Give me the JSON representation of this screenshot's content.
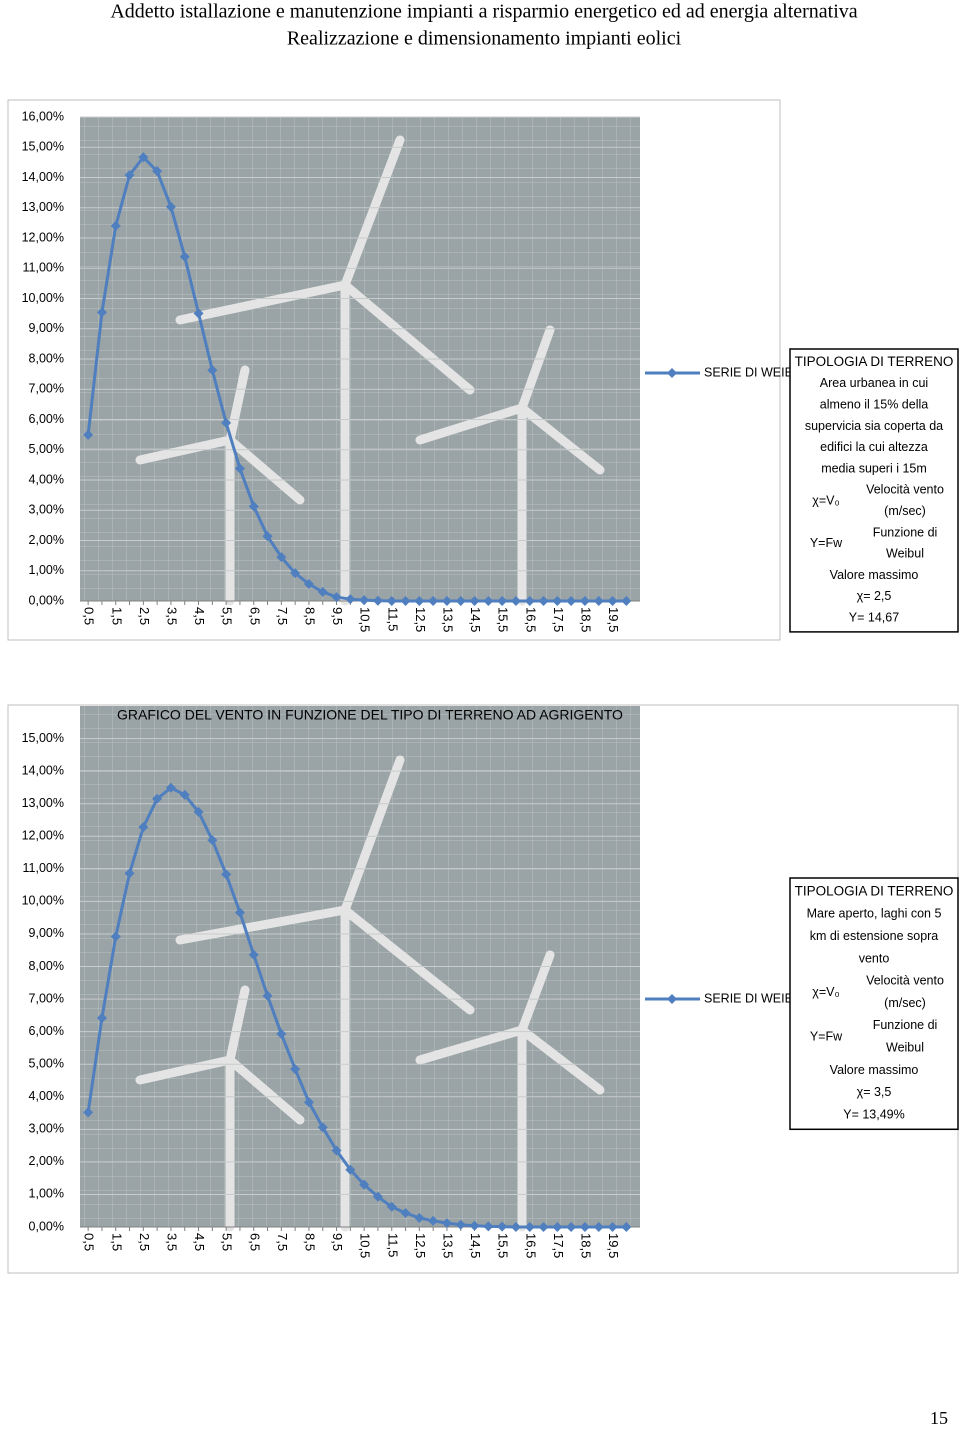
{
  "header": {
    "line1": "Addetto istallazione e manutenzione impianti a risparmio energetico ed ad energia alternativa",
    "line2": "Realizzazione e dimensionamento impianti eolici"
  },
  "page_number": "15",
  "chart_data": [
    {
      "type": "line",
      "categories": [
        "0,5",
        null,
        "1,5",
        null,
        "2,5",
        null,
        "3,5",
        null,
        "4,5",
        null,
        "5,5",
        null,
        "6,5",
        null,
        "7,5",
        null,
        "8,5",
        null,
        "9,5",
        null,
        "10,5",
        null,
        "11,5",
        null,
        "12,5",
        null,
        "13,5",
        null,
        "14,5",
        null,
        "15,5",
        null,
        "16,5",
        null,
        "17,5",
        null,
        "18,5",
        null,
        "19,5",
        null
      ],
      "series": [
        {
          "name": "SERIE DI WEIBULL",
          "color": "#4f7fbf",
          "values": [
            5.49,
            9.54,
            12.4,
            14.08,
            14.67,
            14.21,
            13.03,
            11.38,
            9.51,
            7.63,
            5.89,
            4.38,
            3.13,
            2.14,
            1.45,
            0.92,
            0.56,
            0.3,
            0.13,
            0.06,
            0.03,
            0.01,
            0,
            0,
            0,
            0,
            0,
            0,
            0,
            0,
            0,
            0,
            0,
            0,
            0,
            0,
            0,
            0,
            0,
            0
          ]
        }
      ],
      "ylim": [
        0,
        16
      ],
      "yticks": [
        {
          "value": 0,
          "label": "0,00%"
        },
        {
          "value": 1,
          "label": "1,00%"
        },
        {
          "value": 2,
          "label": "2,00%"
        },
        {
          "value": 3,
          "label": "3,00%"
        },
        {
          "value": 4,
          "label": "4,00%"
        },
        {
          "value": 5,
          "label": "5,00%"
        },
        {
          "value": 6,
          "label": "6,00%"
        },
        {
          "value": 7,
          "label": "7,00%"
        },
        {
          "value": 8,
          "label": "8,00%"
        },
        {
          "value": 9,
          "label": "9,00%"
        },
        {
          "value": 10,
          "label": "10,00%"
        },
        {
          "value": 11,
          "label": "11,00%"
        },
        {
          "value": 12,
          "label": "12,00%"
        },
        {
          "value": 13,
          "label": "13,00%"
        },
        {
          "value": 14,
          "label": "14,00%"
        },
        {
          "value": 15,
          "label": "15,00%"
        },
        {
          "value": 16,
          "label": "16,00%"
        }
      ],
      "legend": "right",
      "info_box": {
        "heading": "TIPOLOGIA DI TERRENO",
        "description": [
          "Area urbanea in cui",
          "almeno il 15% della",
          "supervicia sia coperta da",
          "edifici la cui altezza",
          "media superi i 15m"
        ],
        "rows": [
          {
            "symbol": "χ=V₀",
            "meaning": [
              "Velocità vento",
              "(m/sec)"
            ]
          },
          {
            "symbol": "Y=Fw",
            "meaning": [
              "Funzione di",
              "Weibul"
            ]
          }
        ],
        "footer": [
          "Valore massimo",
          "χ= 2,5",
          "Y= 14,67"
        ]
      }
    },
    {
      "type": "line",
      "title": "GRAFICO DEL VENTO IN FUNZIONE DEL TIPO DI TERRENO AD AGRIGENTO",
      "categories": [
        "0,5",
        null,
        "1,5",
        null,
        "2,5",
        null,
        "3,5",
        null,
        "4,5",
        null,
        "5,5",
        null,
        "6,5",
        null,
        "7,5",
        null,
        "8,5",
        null,
        "9,5",
        null,
        "10,5",
        null,
        "11,5",
        null,
        "12,5",
        null,
        "13,5",
        null,
        "14,5",
        null,
        "15,5",
        null,
        "16,5",
        null,
        "17,5",
        null,
        "18,5",
        null,
        "19,5",
        null
      ],
      "series": [
        {
          "name": "SERIE DI WEIBULL",
          "color": "#4f7fbf",
          "values": [
            3.52,
            6.42,
            8.92,
            10.86,
            12.28,
            13.15,
            13.49,
            13.27,
            12.75,
            11.88,
            10.83,
            9.66,
            8.36,
            7.1,
            5.93,
            4.85,
            3.83,
            3.06,
            2.35,
            1.76,
            1.3,
            0.93,
            0.62,
            0.43,
            0.28,
            0.19,
            0.12,
            0.07,
            0.04,
            0.02,
            0.01,
            0,
            0,
            0,
            0,
            0,
            0,
            0,
            0,
            0
          ]
        }
      ],
      "ylim": [
        0,
        16
      ],
      "yticks": [
        {
          "value": 0,
          "label": "0,00%"
        },
        {
          "value": 1,
          "label": "1,00%"
        },
        {
          "value": 2,
          "label": "2,00%"
        },
        {
          "value": 3,
          "label": "3,00%"
        },
        {
          "value": 4,
          "label": "4,00%"
        },
        {
          "value": 5,
          "label": "5,00%"
        },
        {
          "value": 6,
          "label": "6,00%"
        },
        {
          "value": 7,
          "label": "7,00%"
        },
        {
          "value": 8,
          "label": "8,00%"
        },
        {
          "value": 9,
          "label": "9,00%"
        },
        {
          "value": 10,
          "label": "10,00%"
        },
        {
          "value": 11,
          "label": "11,00%"
        },
        {
          "value": 12,
          "label": "12,00%"
        },
        {
          "value": 13,
          "label": "13,00%"
        },
        {
          "value": 14,
          "label": "14,00%"
        },
        {
          "value": 15,
          "label": "15,00%"
        }
      ],
      "legend": "right",
      "info_box": {
        "heading": "TIPOLOGIA DI TERRENO",
        "description": [
          "Mare aperto, laghi con 5",
          "km di estensione sopra",
          "vento"
        ],
        "rows": [
          {
            "symbol": "χ=V₀",
            "meaning": [
              "Velocità vento",
              "(m/sec)"
            ]
          },
          {
            "symbol": "Y=Fw",
            "meaning": [
              "Funzione di",
              "Weibul"
            ]
          }
        ],
        "footer": [
          "Valore massimo",
          "χ= 3,5",
          "Y= 13,49%"
        ]
      }
    }
  ]
}
